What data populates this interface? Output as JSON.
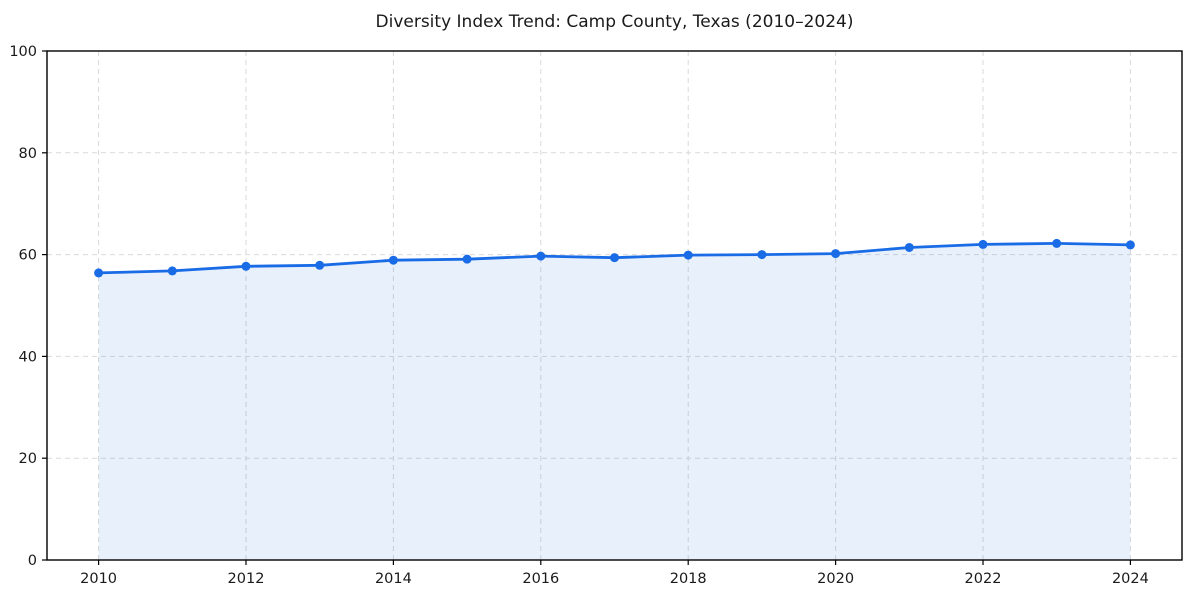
{
  "chart_data": {
    "type": "line",
    "title": "Diversity Index Trend: Camp County, Texas (2010–2024)",
    "x": [
      2010,
      2011,
      2012,
      2013,
      2014,
      2015,
      2016,
      2017,
      2018,
      2019,
      2020,
      2021,
      2022,
      2023,
      2024
    ],
    "values": [
      56.4,
      56.8,
      57.7,
      57.9,
      58.9,
      59.1,
      59.7,
      59.4,
      59.9,
      60.0,
      60.2,
      61.4,
      62.0,
      62.2,
      61.9
    ],
    "xlabel": "",
    "ylabel": "",
    "xlim": [
      2009.3,
      2024.7
    ],
    "ylim": [
      0,
      100
    ],
    "x_ticks": [
      2010,
      2012,
      2014,
      2016,
      2018,
      2020,
      2022,
      2024
    ],
    "y_ticks": [
      0,
      20,
      40,
      60,
      80,
      100
    ],
    "grid": "dashed-both-axes",
    "legend": "none",
    "marker": "circle",
    "area_fill": true,
    "colors": {
      "line": "#1a6ce6",
      "marker": "#1a6ce6",
      "area": "#1a6ce6",
      "area_opacity": "0.10",
      "gridline": "#d9d9d9",
      "spine": "#000000",
      "text": "#1a1a1a",
      "background": "#ffffff"
    }
  }
}
